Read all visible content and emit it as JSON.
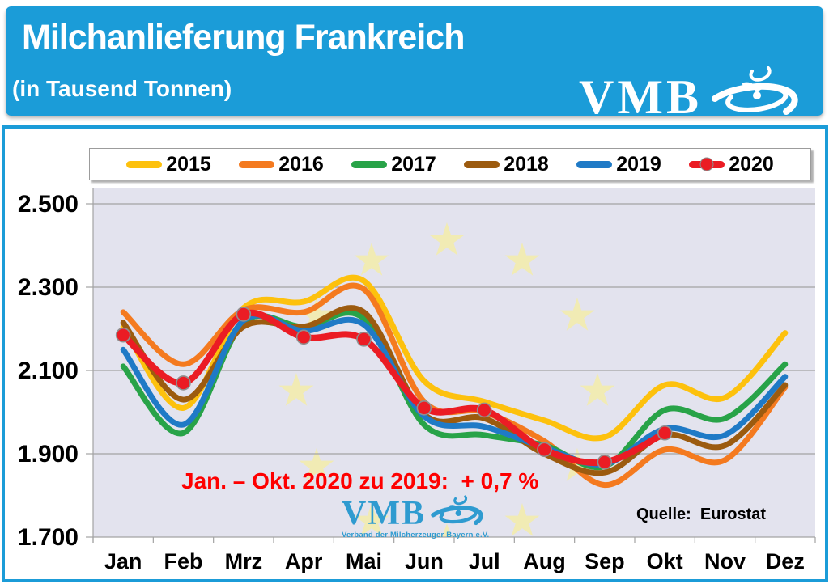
{
  "header": {
    "title": "Milchanlieferung Frankreich",
    "subtitle": "(in Tausend Tonnen)",
    "logo_text": "VMB",
    "banner_color": "#1b9cd8"
  },
  "chart_data": {
    "type": "line",
    "title": "Milchanlieferung Frankreich (in Tausend Tonnen)",
    "unit": "Tausend Tonnen",
    "categories": [
      "Jan",
      "Feb",
      "Mrz",
      "Apr",
      "Mai",
      "Jun",
      "Jul",
      "Aug",
      "Sep",
      "Okt",
      "Nov",
      "Dez"
    ],
    "y_ticks_labels": [
      "2.500",
      "2.300",
      "2.100",
      "1.900",
      "1.700"
    ],
    "y_ticks_values": [
      2500,
      2300,
      2100,
      1900,
      1700
    ],
    "ylim": [
      1700,
      2500
    ],
    "grid": "horizontal",
    "legend_position": "top",
    "plot_background": "#e3e3ee",
    "gridline_color": "#a3a3a3",
    "series": [
      {
        "name": "2015",
        "color": "#fdc10d",
        "marker": false,
        "values": [
          2205,
          2010,
          2250,
          2265,
          2315,
          2075,
          2025,
          1980,
          1940,
          2065,
          2035,
          2190
        ]
      },
      {
        "name": "2016",
        "color": "#f47a1f",
        "marker": false,
        "values": [
          2240,
          2115,
          2245,
          2240,
          2295,
          2025,
          2000,
          1930,
          1825,
          1910,
          1885,
          2060
        ]
      },
      {
        "name": "2017",
        "color": "#28a348",
        "marker": false,
        "values": [
          2110,
          1950,
          2215,
          2205,
          2225,
          1970,
          1945,
          1920,
          1870,
          2005,
          1985,
          2115
        ]
      },
      {
        "name": "2018",
        "color": "#9c5b0f",
        "marker": false,
        "values": [
          2215,
          2030,
          2205,
          2205,
          2240,
          1995,
          1985,
          1900,
          1855,
          1945,
          1920,
          2065
        ]
      },
      {
        "name": "2019",
        "color": "#1f7ac6",
        "marker": false,
        "values": [
          2150,
          1970,
          2220,
          2195,
          2210,
          1990,
          1965,
          1915,
          1875,
          1960,
          1945,
          2085
        ]
      },
      {
        "name": "2020",
        "color": "#eb1c24",
        "marker": true,
        "values": [
          2185,
          2070,
          2235,
          2180,
          2175,
          2010,
          2005,
          1910,
          1880,
          1950,
          null,
          null
        ]
      }
    ],
    "annotation": "Jan. – Okt. 2020 zu 2019:  + 0,7 %",
    "annotation_color": "#fe0000",
    "source": "Quelle:  Eurostat",
    "background_decoration": "eu-stars-watermark"
  },
  "watermark": {
    "text": "VMB",
    "caption": "Verband der Milcherzeuger Bayern e.V."
  }
}
